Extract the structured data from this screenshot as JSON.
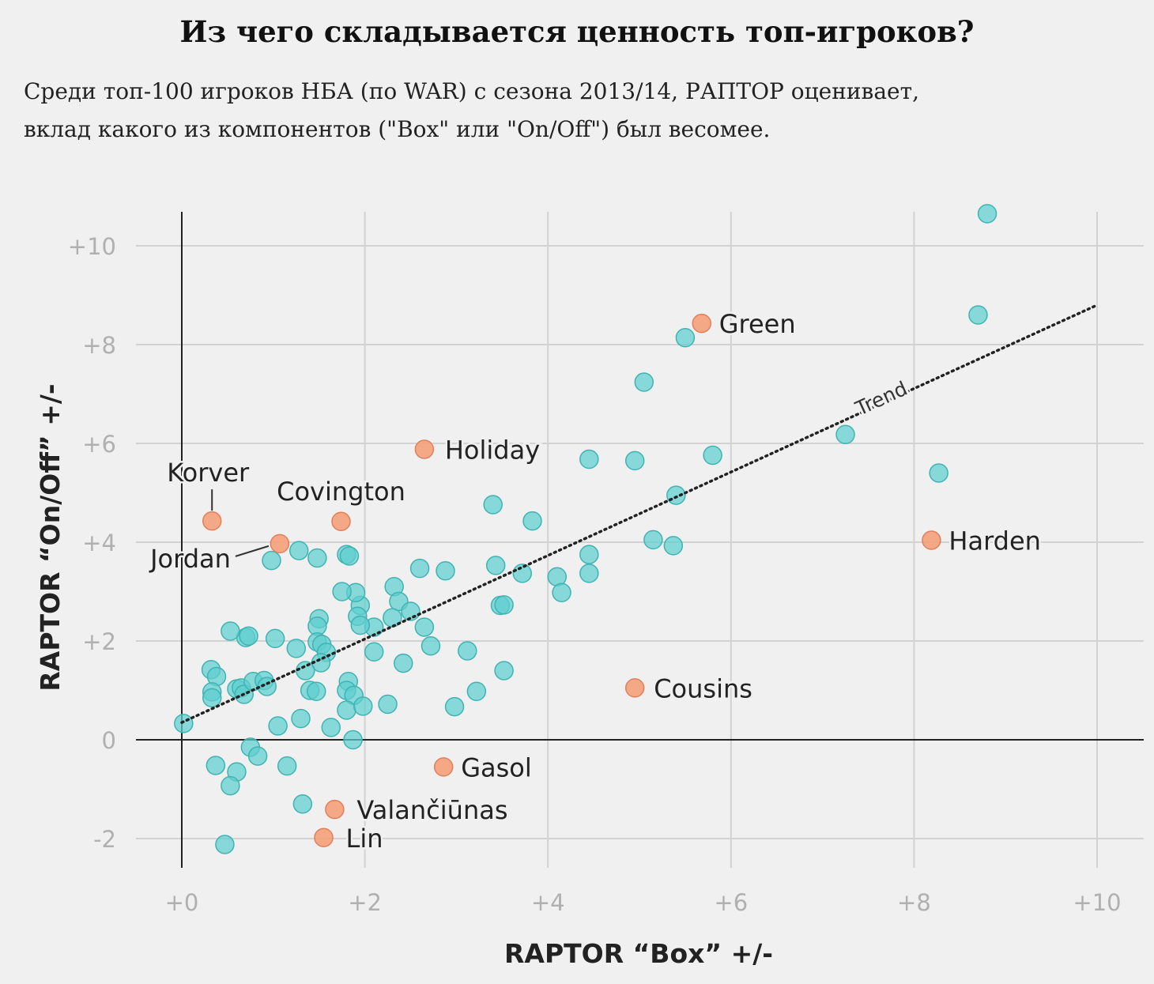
{
  "title": "Из чего складывается ценность топ-игроков?",
  "subtitle_lines": [
    "Среди топ-100 игроков НБА (по WAR) с сезона 2013/14, РАПТОР оценивает,",
    "вклад какого из компонентов (\"Box\" или \"On/Off\") был весомее."
  ],
  "chart_data": {
    "type": "scatter",
    "title": "",
    "xlabel": "RAPTOR “Box” +/-",
    "ylabel": "RAPTOR “On/Off” +/-",
    "xlim": [
      -1,
      10.5
    ],
    "ylim": [
      -2.7,
      10.7
    ],
    "xticks": [
      0,
      2,
      4,
      6,
      8,
      10
    ],
    "xtick_labels": [
      "+0",
      "+2",
      "+4",
      "+6",
      "+8",
      "+10"
    ],
    "yticks": [
      -2,
      0,
      2,
      4,
      6,
      8,
      10
    ],
    "ytick_labels": [
      "-2",
      "0",
      "+2",
      "+4",
      "+6",
      "+8",
      "+10"
    ],
    "grid": true,
    "colors": {
      "players": "#5ecfcf",
      "highlighted": "#f4a07a"
    },
    "trend": {
      "label": "Trend",
      "x": [
        0,
        10
      ],
      "y": [
        0.35,
        8.8
      ]
    },
    "highlighted": [
      {
        "name": "Green",
        "x": 5.68,
        "y": 8.43
      },
      {
        "name": "Holiday",
        "x": 2.65,
        "y": 5.88
      },
      {
        "name": "Korver",
        "x": 0.33,
        "y": 4.43
      },
      {
        "name": "Covington",
        "x": 1.74,
        "y": 4.42
      },
      {
        "name": "Jordan",
        "x": 1.07,
        "y": 3.97
      },
      {
        "name": "Harden",
        "x": 8.19,
        "y": 4.04
      },
      {
        "name": "Cousins",
        "x": 4.95,
        "y": 1.05
      },
      {
        "name": "Gasol",
        "x": 2.86,
        "y": -0.55
      },
      {
        "name": "Valančiūnas",
        "x": 1.67,
        "y": -1.41
      },
      {
        "name": "Lin",
        "x": 1.55,
        "y": -1.98
      }
    ],
    "players": [
      [
        8.8,
        10.65
      ],
      [
        8.7,
        8.6
      ],
      [
        5.5,
        8.14
      ],
      [
        5.05,
        7.24
      ],
      [
        7.25,
        6.18
      ],
      [
        8.27,
        5.4
      ],
      [
        4.45,
        5.68
      ],
      [
        4.95,
        5.65
      ],
      [
        5.8,
        5.76
      ],
      [
        5.4,
        4.95
      ],
      [
        3.4,
        4.76
      ],
      [
        3.83,
        4.43
      ],
      [
        5.15,
        4.05
      ],
      [
        5.37,
        3.93
      ],
      [
        4.45,
        3.75
      ],
      [
        4.45,
        3.37
      ],
      [
        4.1,
        3.3
      ],
      [
        4.15,
        2.98
      ],
      [
        3.72,
        3.37
      ],
      [
        3.43,
        3.53
      ],
      [
        3.48,
        2.72
      ],
      [
        3.52,
        2.73
      ],
      [
        2.88,
        3.42
      ],
      [
        2.6,
        3.47
      ],
      [
        2.32,
        3.1
      ],
      [
        2.37,
        2.8
      ],
      [
        2.5,
        2.6
      ],
      [
        2.3,
        2.47
      ],
      [
        2.65,
        2.28
      ],
      [
        2.72,
        1.9
      ],
      [
        2.42,
        1.55
      ],
      [
        2.1,
        2.28
      ],
      [
        2.1,
        1.78
      ],
      [
        1.95,
        2.72
      ],
      [
        1.9,
        2.98
      ],
      [
        1.75,
        3.0
      ],
      [
        1.92,
        2.5
      ],
      [
        1.95,
        2.32
      ],
      [
        1.8,
        3.75
      ],
      [
        1.83,
        3.72
      ],
      [
        1.48,
        3.68
      ],
      [
        1.28,
        3.83
      ],
      [
        0.98,
        3.63
      ],
      [
        1.5,
        2.45
      ],
      [
        1.48,
        2.3
      ],
      [
        1.48,
        1.98
      ],
      [
        1.53,
        1.93
      ],
      [
        1.58,
        1.77
      ],
      [
        1.52,
        1.56
      ],
      [
        1.25,
        1.85
      ],
      [
        1.35,
        1.4
      ],
      [
        1.02,
        2.05
      ],
      [
        0.7,
        2.07
      ],
      [
        0.73,
        2.1
      ],
      [
        0.53,
        2.2
      ],
      [
        0.32,
        1.42
      ],
      [
        0.38,
        1.28
      ],
      [
        0.33,
        0.97
      ],
      [
        0.33,
        0.85
      ],
      [
        0.6,
        1.03
      ],
      [
        0.65,
        1.05
      ],
      [
        0.68,
        0.92
      ],
      [
        0.78,
        1.18
      ],
      [
        0.9,
        1.2
      ],
      [
        0.93,
        1.08
      ],
      [
        1.4,
        1.0
      ],
      [
        1.47,
        0.98
      ],
      [
        1.82,
        1.18
      ],
      [
        1.8,
        1.0
      ],
      [
        1.88,
        0.9
      ],
      [
        1.8,
        0.6
      ],
      [
        1.98,
        0.68
      ],
      [
        2.25,
        0.72
      ],
      [
        3.12,
        1.8
      ],
      [
        3.22,
        0.98
      ],
      [
        3.52,
        1.4
      ],
      [
        2.98,
        0.67
      ],
      [
        1.3,
        0.43
      ],
      [
        1.05,
        0.28
      ],
      [
        1.63,
        0.25
      ],
      [
        1.87,
        0.0
      ],
      [
        0.02,
        0.33
      ],
      [
        0.37,
        -0.52
      ],
      [
        0.6,
        -0.65
      ],
      [
        0.53,
        -0.93
      ],
      [
        0.75,
        -0.15
      ],
      [
        0.83,
        -0.33
      ],
      [
        1.15,
        -0.53
      ],
      [
        1.32,
        -1.3
      ],
      [
        0.47,
        -2.12
      ]
    ]
  }
}
